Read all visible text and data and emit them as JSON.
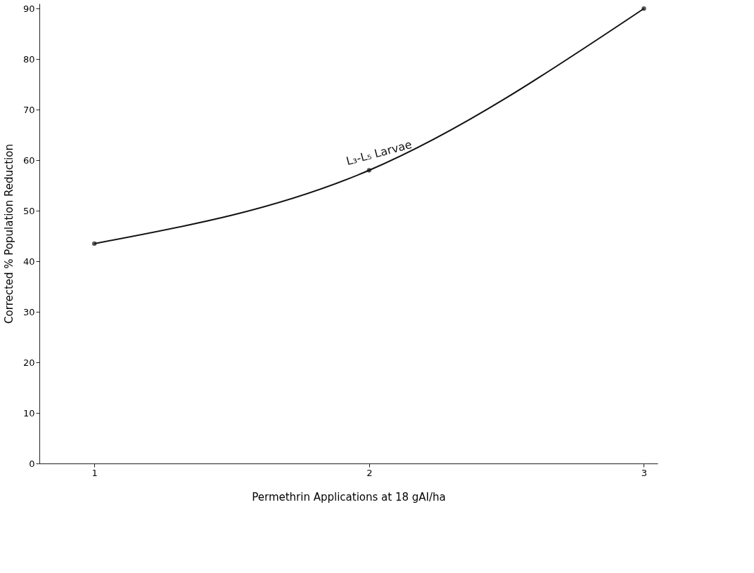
{
  "chart_data": {
    "type": "line",
    "xlabel": "Permethrin  Applications at 18 gAI/ha",
    "ylabel": "Corrected % Population Reduction",
    "x": [
      1,
      2,
      3
    ],
    "series": [
      {
        "name": "L₃-L₅ Larvae",
        "color": "#111111",
        "values": [
          43.5,
          58,
          90
        ]
      }
    ],
    "xlim": [
      0.8,
      3.05
    ],
    "xticks": [
      1,
      2,
      3
    ],
    "ylim": [
      0,
      91
    ],
    "yticks": [
      0,
      10,
      20,
      30,
      40,
      50,
      60,
      70,
      80,
      90
    ],
    "grid": false,
    "legend": false,
    "marker": "circle",
    "line_style": "solid"
  }
}
